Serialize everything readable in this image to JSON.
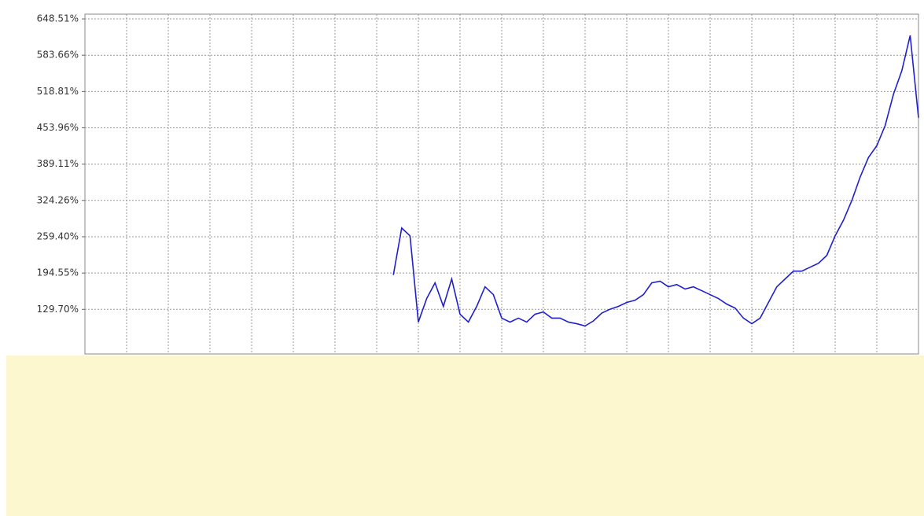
{
  "chart_data": {
    "type": "line",
    "x": [
      37,
      38,
      39,
      40,
      41,
      42,
      43,
      44,
      45,
      46,
      47,
      48,
      49,
      50,
      51,
      52,
      53,
      54,
      55,
      56,
      57,
      58,
      59,
      60,
      61,
      62,
      63,
      64,
      65,
      66,
      67,
      68,
      69,
      70,
      71,
      72,
      73,
      74,
      75,
      76,
      77,
      78,
      79,
      80,
      81,
      82,
      83,
      84,
      85,
      86,
      87,
      88,
      89,
      90,
      91,
      92,
      93,
      94,
      95,
      96,
      97,
      98,
      99,
      100
    ],
    "series": [
      {
        "color": "#1f1fcc",
        "values": [
          191,
          275,
          261,
          107,
          149,
          177,
          135,
          184,
          121,
          107,
          135,
          170,
          156,
          114,
          107,
          114,
          107,
          121,
          125,
          114,
          114,
          107,
          104,
          100,
          109,
          123,
          130,
          135,
          142,
          146,
          156,
          177,
          180,
          170,
          174,
          166,
          170,
          163,
          156,
          149,
          139,
          132,
          114,
          104,
          114,
          142,
          170,
          184,
          198,
          198,
          205,
          212,
          226,
          261,
          289,
          324,
          366,
          401,
          422,
          458,
          514,
          556,
          619,
          472
        ]
      }
    ],
    "xlim": [
      0,
      100
    ],
    "ylim": [
      50,
      657
    ],
    "yticks": [
      {
        "value": 648.51,
        "label": "648.51%"
      },
      {
        "value": 583.66,
        "label": "583.66%"
      },
      {
        "value": 518.81,
        "label": "518.81%"
      },
      {
        "value": 453.96,
        "label": "453.96%"
      },
      {
        "value": 389.11,
        "label": "389.11%"
      },
      {
        "value": 324.26,
        "label": "324.26%"
      },
      {
        "value": 259.4,
        "label": "259.40%"
      },
      {
        "value": 194.55,
        "label": "194.55%"
      },
      {
        "value": 129.7,
        "label": "129.70%"
      }
    ],
    "grid": true
  }
}
